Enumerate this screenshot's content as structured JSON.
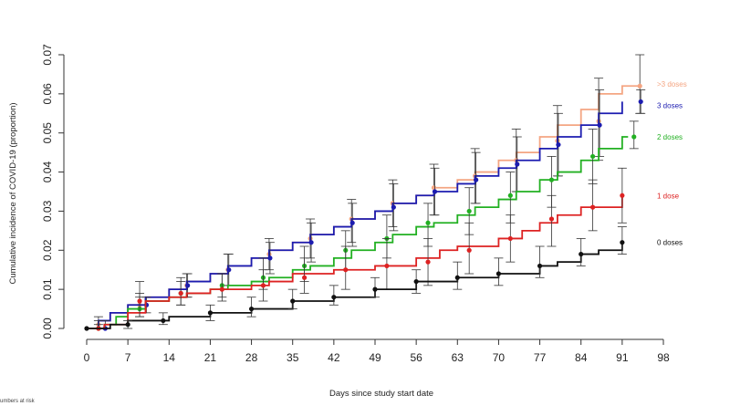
{
  "chart_data": {
    "type": "line",
    "xlabel": "Days since study start date",
    "ylabel": "Cumulative incidence of COVID-19 (proportion)",
    "x_ticks": [
      0,
      7,
      14,
      21,
      28,
      35,
      42,
      49,
      56,
      63,
      70,
      77,
      84,
      91,
      98
    ],
    "y_ticks": [
      "0.00",
      "0.01",
      "0.02",
      "0.03",
      "0.04",
      "0.05",
      "0.06",
      "0.07"
    ],
    "xlim": [
      0,
      98
    ],
    "ylim": [
      0,
      0.07
    ],
    "grid": false,
    "legend_placement": "right, at line ends",
    "series": [
      {
        "name": ">3 doses",
        "color": "#f4a582",
        "steps": [
          [
            0,
            0
          ],
          [
            2,
            0.002
          ],
          [
            4,
            0.004
          ],
          [
            7,
            0.006
          ],
          [
            10,
            0.008
          ],
          [
            14,
            0.01
          ],
          [
            17,
            0.012
          ],
          [
            21,
            0.014
          ],
          [
            24,
            0.016
          ],
          [
            28,
            0.018
          ],
          [
            31,
            0.02
          ],
          [
            35,
            0.022
          ],
          [
            38,
            0.024
          ],
          [
            42,
            0.026
          ],
          [
            45,
            0.028
          ],
          [
            49,
            0.03
          ],
          [
            52,
            0.032
          ],
          [
            56,
            0.034
          ],
          [
            59,
            0.036
          ],
          [
            63,
            0.038
          ],
          [
            66,
            0.04
          ],
          [
            70,
            0.043
          ],
          [
            73,
            0.045
          ],
          [
            77,
            0.049
          ],
          [
            80,
            0.052
          ],
          [
            84,
            0.056
          ],
          [
            87,
            0.06
          ],
          [
            91,
            0.062
          ],
          [
            94,
            0.062
          ]
        ],
        "points": [
          [
            2,
            0.001
          ],
          [
            9,
            0.006
          ],
          [
            17,
            0.011
          ],
          [
            24,
            0.015
          ],
          [
            31,
            0.019
          ],
          [
            38,
            0.023
          ],
          [
            45,
            0.028
          ],
          [
            52,
            0.032
          ],
          [
            59,
            0.036
          ],
          [
            66,
            0.039
          ],
          [
            73,
            0.043
          ],
          [
            80,
            0.048
          ],
          [
            87,
            0.053
          ],
          [
            94,
            0.062
          ]
        ],
        "ci": [
          [
            2,
            0.0,
            0.003
          ],
          [
            9,
            0.004,
            0.009
          ],
          [
            17,
            0.008,
            0.014
          ],
          [
            24,
            0.011,
            0.019
          ],
          [
            31,
            0.015,
            0.023
          ],
          [
            38,
            0.018,
            0.028
          ],
          [
            45,
            0.022,
            0.033
          ],
          [
            52,
            0.026,
            0.038
          ],
          [
            59,
            0.029,
            0.042
          ],
          [
            66,
            0.032,
            0.046
          ],
          [
            73,
            0.035,
            0.051
          ],
          [
            80,
            0.039,
            0.057
          ],
          [
            87,
            0.043,
            0.064
          ],
          [
            94,
            0.055,
            0.07
          ]
        ]
      },
      {
        "name": "3 doses",
        "color": "#1c1cb0",
        "steps": [
          [
            0,
            0
          ],
          [
            2,
            0.002
          ],
          [
            4,
            0.004
          ],
          [
            7,
            0.006
          ],
          [
            10,
            0.008
          ],
          [
            14,
            0.01
          ],
          [
            17,
            0.012
          ],
          [
            21,
            0.014
          ],
          [
            24,
            0.016
          ],
          [
            28,
            0.018
          ],
          [
            31,
            0.02
          ],
          [
            35,
            0.022
          ],
          [
            38,
            0.024
          ],
          [
            42,
            0.026
          ],
          [
            45,
            0.028
          ],
          [
            49,
            0.03
          ],
          [
            52,
            0.032
          ],
          [
            56,
            0.034
          ],
          [
            59,
            0.035
          ],
          [
            63,
            0.037
          ],
          [
            66,
            0.039
          ],
          [
            70,
            0.041
          ],
          [
            73,
            0.043
          ],
          [
            77,
            0.046
          ],
          [
            80,
            0.049
          ],
          [
            84,
            0.052
          ],
          [
            87,
            0.055
          ],
          [
            91,
            0.058
          ]
        ],
        "points": [
          [
            3,
            0.0
          ],
          [
            10,
            0.006
          ],
          [
            17,
            0.011
          ],
          [
            24,
            0.015
          ],
          [
            31,
            0.018
          ],
          [
            38,
            0.022
          ],
          [
            45,
            0.027
          ],
          [
            52,
            0.031
          ],
          [
            59,
            0.035
          ],
          [
            66,
            0.038
          ],
          [
            73,
            0.042
          ],
          [
            80,
            0.047
          ],
          [
            87,
            0.052
          ],
          [
            94,
            0.058
          ]
        ],
        "ci": [
          [
            3,
            0.0,
            0.002
          ],
          [
            10,
            0.004,
            0.008
          ],
          [
            17,
            0.008,
            0.014
          ],
          [
            24,
            0.011,
            0.019
          ],
          [
            31,
            0.014,
            0.022
          ],
          [
            38,
            0.017,
            0.027
          ],
          [
            45,
            0.021,
            0.032
          ],
          [
            52,
            0.025,
            0.037
          ],
          [
            59,
            0.029,
            0.041
          ],
          [
            66,
            0.032,
            0.045
          ],
          [
            73,
            0.035,
            0.049
          ],
          [
            80,
            0.039,
            0.055
          ],
          [
            87,
            0.044,
            0.061
          ],
          [
            94,
            0.055,
            0.061
          ]
        ]
      },
      {
        "name": "2 doses",
        "color": "#22b022",
        "steps": [
          [
            0,
            0
          ],
          [
            3,
            0.001
          ],
          [
            5,
            0.003
          ],
          [
            7,
            0.005
          ],
          [
            10,
            0.007
          ],
          [
            14,
            0.008
          ],
          [
            17,
            0.009
          ],
          [
            21,
            0.01
          ],
          [
            24,
            0.011
          ],
          [
            28,
            0.012
          ],
          [
            31,
            0.013
          ],
          [
            35,
            0.015
          ],
          [
            38,
            0.016
          ],
          [
            42,
            0.018
          ],
          [
            45,
            0.02
          ],
          [
            49,
            0.022
          ],
          [
            52,
            0.024
          ],
          [
            56,
            0.026
          ],
          [
            59,
            0.027
          ],
          [
            63,
            0.029
          ],
          [
            66,
            0.031
          ],
          [
            70,
            0.033
          ],
          [
            73,
            0.035
          ],
          [
            77,
            0.038
          ],
          [
            80,
            0.04
          ],
          [
            84,
            0.043
          ],
          [
            87,
            0.046
          ],
          [
            91,
            0.049
          ],
          [
            92,
            0.049
          ]
        ],
        "points": [
          [
            2,
            0.0
          ],
          [
            9,
            0.005
          ],
          [
            16,
            0.009
          ],
          [
            23,
            0.011
          ],
          [
            30,
            0.013
          ],
          [
            37,
            0.016
          ],
          [
            44,
            0.02
          ],
          [
            51,
            0.023
          ],
          [
            58,
            0.027
          ],
          [
            65,
            0.03
          ],
          [
            72,
            0.034
          ],
          [
            79,
            0.038
          ],
          [
            86,
            0.044
          ],
          [
            93,
            0.049
          ]
        ],
        "ci": [
          [
            2,
            0.0,
            0.002
          ],
          [
            9,
            0.003,
            0.008
          ],
          [
            16,
            0.006,
            0.012
          ],
          [
            23,
            0.008,
            0.014
          ],
          [
            30,
            0.01,
            0.018
          ],
          [
            37,
            0.012,
            0.021
          ],
          [
            44,
            0.015,
            0.025
          ],
          [
            51,
            0.018,
            0.029
          ],
          [
            58,
            0.021,
            0.032
          ],
          [
            65,
            0.024,
            0.036
          ],
          [
            72,
            0.027,
            0.04
          ],
          [
            79,
            0.031,
            0.044
          ],
          [
            86,
            0.037,
            0.051
          ],
          [
            93,
            0.046,
            0.053
          ]
        ]
      },
      {
        "name": "1 dose",
        "color": "#dd2222",
        "steps": [
          [
            0,
            0
          ],
          [
            3,
            0.001
          ],
          [
            7,
            0.004
          ],
          [
            10,
            0.007
          ],
          [
            14,
            0.008
          ],
          [
            17,
            0.009
          ],
          [
            21,
            0.01
          ],
          [
            28,
            0.011
          ],
          [
            31,
            0.012
          ],
          [
            35,
            0.014
          ],
          [
            42,
            0.015
          ],
          [
            49,
            0.016
          ],
          [
            56,
            0.018
          ],
          [
            60,
            0.02
          ],
          [
            63,
            0.021
          ],
          [
            70,
            0.023
          ],
          [
            74,
            0.025
          ],
          [
            77,
            0.027
          ],
          [
            80,
            0.029
          ],
          [
            84,
            0.031
          ],
          [
            91,
            0.034
          ]
        ],
        "points": [
          [
            2,
            0.0
          ],
          [
            9,
            0.007
          ],
          [
            16,
            0.009
          ],
          [
            23,
            0.01
          ],
          [
            30,
            0.011
          ],
          [
            37,
            0.013
          ],
          [
            44,
            0.015
          ],
          [
            51,
            0.016
          ],
          [
            58,
            0.017
          ],
          [
            65,
            0.02
          ],
          [
            72,
            0.023
          ],
          [
            79,
            0.028
          ],
          [
            86,
            0.031
          ],
          [
            91,
            0.034
          ]
        ],
        "ci": [
          [
            2,
            0.0,
            0.001
          ],
          [
            9,
            0.003,
            0.012
          ],
          [
            16,
            0.006,
            0.013
          ],
          [
            23,
            0.007,
            0.014
          ],
          [
            30,
            0.007,
            0.015
          ],
          [
            37,
            0.009,
            0.018
          ],
          [
            44,
            0.01,
            0.021
          ],
          [
            51,
            0.01,
            0.023
          ],
          [
            58,
            0.011,
            0.023
          ],
          [
            65,
            0.014,
            0.027
          ],
          [
            72,
            0.017,
            0.029
          ],
          [
            79,
            0.021,
            0.034
          ],
          [
            86,
            0.025,
            0.038
          ],
          [
            91,
            0.027,
            0.041
          ]
        ]
      },
      {
        "name": "0 doses",
        "color": "#111111",
        "steps": [
          [
            0,
            0
          ],
          [
            4,
            0.001
          ],
          [
            7,
            0.002
          ],
          [
            14,
            0.003
          ],
          [
            21,
            0.004
          ],
          [
            28,
            0.005
          ],
          [
            35,
            0.007
          ],
          [
            42,
            0.008
          ],
          [
            49,
            0.01
          ],
          [
            56,
            0.012
          ],
          [
            63,
            0.013
          ],
          [
            70,
            0.014
          ],
          [
            77,
            0.016
          ],
          [
            80,
            0.017
          ],
          [
            84,
            0.019
          ],
          [
            87,
            0.02
          ],
          [
            91,
            0.022
          ]
        ],
        "points": [
          [
            0,
            0.0
          ],
          [
            7,
            0.001
          ],
          [
            13,
            0.002
          ],
          [
            21,
            0.004
          ],
          [
            28,
            0.005
          ],
          [
            35,
            0.007
          ],
          [
            42,
            0.008
          ],
          [
            49,
            0.01
          ],
          [
            56,
            0.012
          ],
          [
            63,
            0.013
          ],
          [
            70,
            0.014
          ],
          [
            77,
            0.016
          ],
          [
            84,
            0.019
          ],
          [
            91,
            0.022
          ]
        ],
        "ci": [
          [
            7,
            0.0,
            0.002
          ],
          [
            13,
            0.001,
            0.004
          ],
          [
            21,
            0.002,
            0.006
          ],
          [
            28,
            0.003,
            0.008
          ],
          [
            35,
            0.005,
            0.01
          ],
          [
            42,
            0.006,
            0.011
          ],
          [
            49,
            0.008,
            0.013
          ],
          [
            56,
            0.009,
            0.015
          ],
          [
            63,
            0.01,
            0.017
          ],
          [
            70,
            0.011,
            0.018
          ],
          [
            77,
            0.013,
            0.021
          ],
          [
            84,
            0.016,
            0.023
          ],
          [
            91,
            0.019,
            0.026
          ]
        ]
      }
    ]
  },
  "footnote": "umbers at risk"
}
